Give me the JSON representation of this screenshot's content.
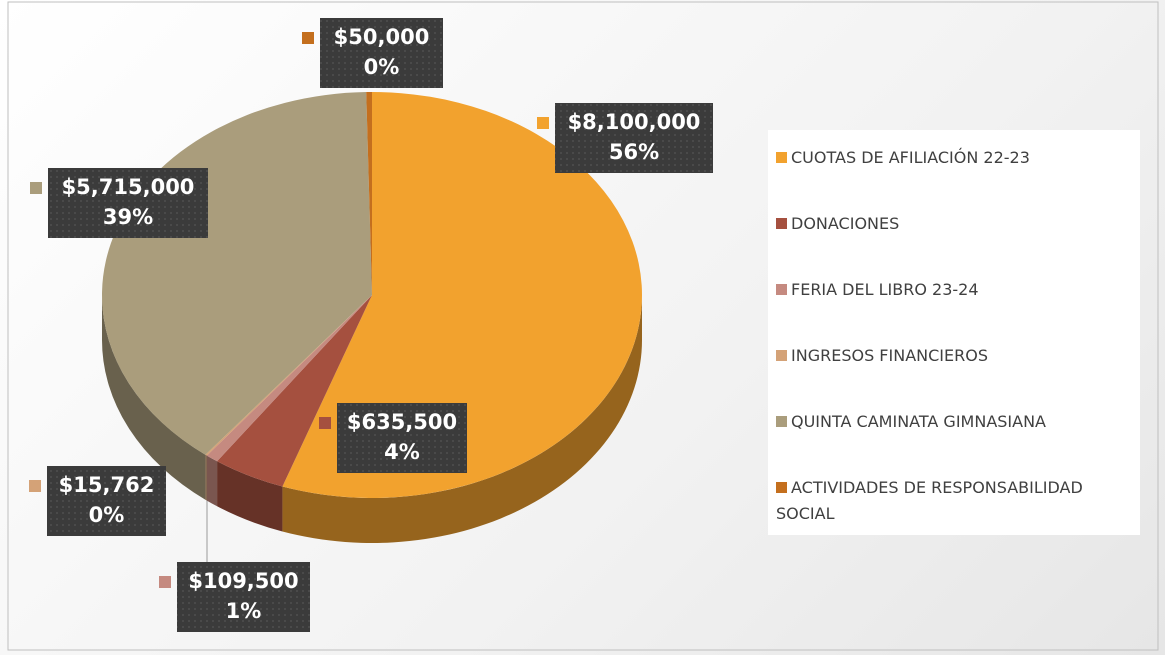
{
  "chart_data": {
    "type": "pie3d",
    "categories": [
      "CUOTAS DE AFILIACIÓN 22-23",
      "DONACIONES",
      "FERIA DEL LIBRO 23-24",
      "INGRESOS FINANCIEROS",
      "QUINTA CAMINATA GIMNASIANA",
      "ACTIVIDADES DE RESPONSABILIDAD SOCIAL"
    ],
    "values": [
      8100000,
      635500,
      109500,
      15762,
      5715000,
      50000
    ],
    "value_labels": [
      "$8,100,000",
      "$635,500",
      "$109,500",
      "$15,762",
      "$5,715,000",
      "$50,000"
    ],
    "percents": [
      56,
      4,
      1,
      0,
      39,
      0
    ],
    "percent_labels": [
      "56%",
      "4%",
      "1%",
      "0%",
      "39%",
      "0%"
    ],
    "colors": [
      "#f2a22e",
      "#a5503f",
      "#c58a80",
      "#d4a277",
      "#aa9d7c",
      "#c46f1e"
    ],
    "legend": "right"
  }
}
